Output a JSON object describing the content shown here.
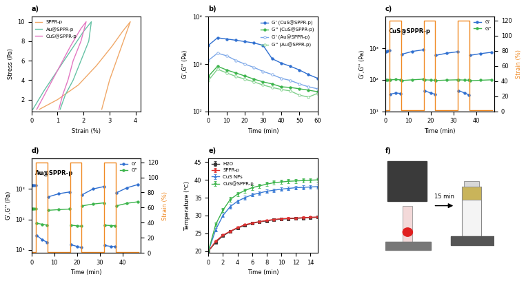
{
  "chart_data": [
    {
      "type": "line",
      "title": "a)",
      "x_label": "Strain (%)",
      "y_label": "Stress (Pa)",
      "xlim": [
        0,
        4.2
      ],
      "xticks": [
        0,
        1,
        2,
        3,
        4
      ],
      "ylim": [
        0.8,
        10.5
      ],
      "yticks": [
        2,
        4,
        6,
        8,
        10
      ],
      "legend": "upper left",
      "series": [
        {
          "name": "SPPR-p",
          "color": "#f0a868",
          "marker": "none",
          "line_style": "solid",
          "x": [
            0.3,
            1.0,
            1.8,
            2.5,
            3.1,
            3.5,
            3.8,
            3.6,
            3.4,
            3.2,
            3.0,
            2.85,
            2.7
          ],
          "values": [
            1.0,
            2.0,
            3.5,
            5.5,
            7.5,
            9.0,
            10.0,
            8.5,
            7.0,
            5.5,
            4.0,
            2.5,
            1.0
          ]
        },
        {
          "name": "Au@SPPR-p",
          "color": "#66c2a5",
          "marker": "none",
          "line_style": "solid",
          "x": [
            0.05,
            0.5,
            1.0,
            1.5,
            2.0,
            2.3,
            2.2,
            1.9,
            1.6,
            1.3,
            1.1
          ],
          "values": [
            1.0,
            3.0,
            5.0,
            7.0,
            9.0,
            10.0,
            8.0,
            6.0,
            4.0,
            2.5,
            1.0
          ]
        },
        {
          "name": "CuS@SPPR-p",
          "color": "#e377c2",
          "marker": "none",
          "line_style": "solid",
          "x": [
            0.2,
            0.6,
            1.1,
            1.5,
            1.9,
            2.1,
            1.9,
            1.6,
            1.4,
            1.2,
            1.05
          ],
          "values": [
            1.0,
            3.0,
            5.5,
            7.5,
            9.3,
            10.0,
            8.0,
            6.0,
            4.0,
            2.5,
            1.0
          ]
        }
      ]
    },
    {
      "type": "line",
      "title": "b)",
      "x_label": "Time (min)",
      "y_label": "G',G'' (Pa)",
      "log": "y",
      "xlim": [
        0,
        60
      ],
      "xticks": [
        0,
        10,
        20,
        30,
        40,
        50,
        60
      ],
      "ylim": [
        100,
        10000
      ],
      "yticks": [
        {
          "value": 100,
          "label": "10²"
        },
        {
          "value": 1000,
          "label": "10³"
        },
        {
          "value": 10000,
          "label": "10⁴"
        }
      ],
      "legend": "upper right",
      "x": [
        0,
        5,
        10,
        15,
        20,
        25,
        30,
        35,
        40,
        45,
        50,
        55,
        60
      ],
      "series": [
        {
          "name": "G' (CuS@SPPR-p)",
          "color": "#2f6fd0",
          "marker": "circle",
          "line_style": "solid",
          "values": [
            2500,
            3600,
            3400,
            3200,
            3000,
            2800,
            2500,
            1300,
            1050,
            900,
            750,
            600,
            500
          ]
        },
        {
          "name": "G'' (CuS@SPPR-p)",
          "color": "#3cb44b",
          "marker": "circle",
          "line_style": "solid",
          "values": [
            550,
            900,
            750,
            650,
            560,
            480,
            420,
            380,
            330,
            320,
            300,
            280,
            260
          ]
        },
        {
          "name": "G' (Au@SPPR-p)",
          "color": "#7aa6e8",
          "marker": "open_circle",
          "line_style": "solid",
          "values": [
            1200,
            1700,
            1500,
            1200,
            1000,
            850,
            700,
            600,
            500,
            450,
            380,
            330,
            300
          ]
        },
        {
          "name": "G'' (Au@SPPR-p)",
          "color": "#7fcf8a",
          "marker": "open_circle",
          "line_style": "solid",
          "values": [
            450,
            780,
            650,
            550,
            480,
            420,
            360,
            320,
            290,
            270,
            220,
            200,
            240
          ]
        }
      ]
    },
    {
      "type": "line",
      "title": "c)",
      "subtitle": "CuS@SPPR-p",
      "x_label": "Time (min)",
      "y_label": "G',G'' (Pa)",
      "y2label": "Strain (%)",
      "log": "y",
      "xlim": [
        0,
        48
      ],
      "xticks": [
        0,
        10,
        20,
        30,
        40
      ],
      "ylim": [
        10,
        10000
      ],
      "yticks": [
        {
          "value": 10,
          "label": "10¹"
        },
        {
          "value": 100,
          "label": "10²"
        },
        {
          "value": 1000,
          "label": "10³"
        }
      ],
      "y2lim": [
        0,
        125
      ],
      "y2ticks": [
        0,
        20,
        40,
        60,
        80,
        100,
        120
      ],
      "legend": "upper right",
      "x": [
        0.3,
        1,
        1.9,
        2.05,
        2.3,
        4.5,
        6.8,
        7.05,
        7.3,
        12,
        16.8,
        17.05,
        17.3,
        20,
        21.8,
        22.05,
        22.3,
        27,
        31.8,
        32.05,
        32.3,
        35,
        36.8,
        37.05,
        37.3,
        42,
        46.8
      ],
      "series": [
        {
          "name": "G'",
          "color": "#2f6fd0",
          "marker": "circle",
          "line_style": "solid",
          "values": [
            800,
            820,
            850,
            null,
            35,
            38,
            37,
            null,
            650,
            800,
            900,
            null,
            45,
            38,
            35,
            null,
            600,
            700,
            780,
            null,
            45,
            38,
            33,
            null,
            600,
            680,
            750
          ]
        },
        {
          "name": "G''",
          "color": "#3cb44b",
          "marker": "circle",
          "line_style": "solid",
          "values": [
            100,
            100,
            100,
            null,
            100,
            102,
            100,
            null,
            95,
            100,
            105,
            null,
            100,
            98,
            97,
            null,
            95,
            98,
            100,
            null,
            100,
            98,
            97,
            null,
            93,
            97,
            100
          ]
        },
        {
          "color": "#f08a24",
          "marker": "none",
          "line_style": "solid",
          "axis": "y2",
          "x": [
            0,
            2,
            2,
            7,
            7,
            17,
            17,
            22,
            22,
            32,
            32,
            37,
            37,
            47
          ],
          "values": [
            1,
            1,
            120,
            120,
            1,
            1,
            120,
            120,
            1,
            1,
            120,
            120,
            1,
            1
          ]
        }
      ]
    },
    {
      "type": "line",
      "title": "d)",
      "subtitle": "Au@SPPR-p",
      "x_label": "Time (min)",
      "y_label": "G',G'' (Pa)",
      "y2label": "Strain (%)",
      "log": "y",
      "xlim": [
        0,
        48
      ],
      "xticks": [
        0,
        10,
        20,
        30,
        40
      ],
      "ylim": [
        8,
        10000
      ],
      "yticks": [
        {
          "value": 10,
          "label": "10¹"
        },
        {
          "value": 100,
          "label": "10²"
        },
        {
          "value": 1000,
          "label": "10³"
        }
      ],
      "y2lim": [
        0,
        125
      ],
      "y2ticks": [
        0,
        20,
        40,
        60,
        80,
        100,
        120
      ],
      "legend": "upper right",
      "x": [
        0.3,
        1,
        1.9,
        2.05,
        2.3,
        4.5,
        6.8,
        7.05,
        7.3,
        12,
        16.8,
        17.05,
        17.3,
        20,
        21.8,
        22.05,
        22.3,
        27,
        31.8,
        32.05,
        32.3,
        35,
        36.8,
        37.05,
        37.3,
        42,
        46.8
      ],
      "series": [
        {
          "name": "G'",
          "color": "#2f6fd0",
          "marker": "circle",
          "line_style": "solid",
          "values": [
            1300,
            1300,
            1300,
            null,
            30,
            22,
            18,
            null,
            550,
            700,
            800,
            null,
            15,
            13,
            12,
            null,
            650,
            1000,
            1200,
            null,
            14,
            13,
            13,
            null,
            750,
            1100,
            1400
          ]
        },
        {
          "name": "G''",
          "color": "#3cb44b",
          "marker": "circle",
          "line_style": "solid",
          "values": [
            220,
            220,
            220,
            null,
            75,
            70,
            65,
            null,
            200,
            210,
            220,
            null,
            65,
            62,
            60,
            null,
            280,
            320,
            350,
            null,
            65,
            63,
            62,
            null,
            280,
            340,
            380
          ]
        },
        {
          "color": "#f08a24",
          "marker": "none",
          "line_style": "solid",
          "axis": "y2",
          "x": [
            0,
            2,
            2,
            7,
            7,
            17,
            17,
            22,
            22,
            32,
            32,
            37,
            37,
            47
          ],
          "values": [
            1,
            1,
            120,
            120,
            1,
            1,
            120,
            120,
            1,
            1,
            120,
            120,
            1,
            1
          ]
        }
      ]
    },
    {
      "type": "line",
      "title": "e)",
      "x_label": "Time (min)",
      "y_label": "Temperature (℃)",
      "xlim": [
        0,
        15
      ],
      "xticks": [
        0,
        2,
        4,
        6,
        8,
        10,
        12,
        14
      ],
      "ylim": [
        19.5,
        46
      ],
      "yticks": [
        20,
        25,
        30,
        35,
        40,
        45
      ],
      "legend": "upper left",
      "x": [
        0,
        1,
        2,
        3,
        4,
        5,
        6,
        7,
        8,
        9,
        10,
        11,
        12,
        13,
        14,
        15
      ],
      "series": [
        {
          "name": "H2O",
          "color": "#333333",
          "marker": "square",
          "line_style": "solid",
          "values": [
            20,
            22.5,
            24.3,
            25.5,
            26.5,
            27.2,
            27.8,
            28.2,
            28.5,
            28.8,
            29,
            29.1,
            29.2,
            29.3,
            29.4,
            29.5
          ],
          "errors": [
            0,
            0.3,
            0.3,
            0.3,
            0.3,
            0.3,
            0.3,
            0.3,
            0.3,
            0.3,
            0.3,
            0.3,
            0.3,
            0.3,
            0.3,
            0.3
          ]
        },
        {
          "name": "SPPR-p",
          "color": "#e03030",
          "marker": "circle",
          "line_style": "solid",
          "values": [
            20,
            22.8,
            24.5,
            25.6,
            26.6,
            27.4,
            27.9,
            28.3,
            28.6,
            28.9,
            29.1,
            29.2,
            29.3,
            29.4,
            29.5,
            29.6
          ],
          "errors": [
            0,
            0.3,
            0.3,
            0.3,
            0.3,
            0.3,
            0.3,
            0.3,
            0.3,
            0.3,
            0.3,
            0.3,
            0.3,
            0.3,
            0.3,
            0.3
          ]
        },
        {
          "name": "CuS NPs",
          "color": "#3a7bd5",
          "marker": "triangle",
          "line_style": "solid",
          "values": [
            20,
            26,
            30,
            32.5,
            34,
            35,
            35.8,
            36.3,
            36.8,
            37.1,
            37.4,
            37.6,
            37.8,
            37.9,
            38,
            38.1
          ],
          "errors": [
            0,
            0.5,
            0.5,
            0.5,
            0.5,
            0.5,
            0.5,
            0.5,
            0.5,
            0.5,
            0.5,
            0.5,
            0.5,
            0.5,
            0.5,
            0.5
          ]
        },
        {
          "name": "CuS@SPPR-p",
          "color": "#3cb44b",
          "marker": "triangle_down",
          "line_style": "solid",
          "values": [
            20,
            27.5,
            31.5,
            34.5,
            36,
            37,
            37.8,
            38.3,
            38.8,
            39.2,
            39.4,
            39.6,
            39.7,
            39.8,
            39.9,
            40
          ],
          "errors": [
            0,
            0.6,
            0.6,
            0.6,
            0.6,
            0.6,
            0.6,
            0.6,
            0.6,
            0.6,
            0.6,
            0.6,
            0.6,
            0.6,
            0.6,
            0.6
          ]
        }
      ]
    }
  ],
  "image": {
    "title": "f)",
    "annotation": "15 min"
  }
}
